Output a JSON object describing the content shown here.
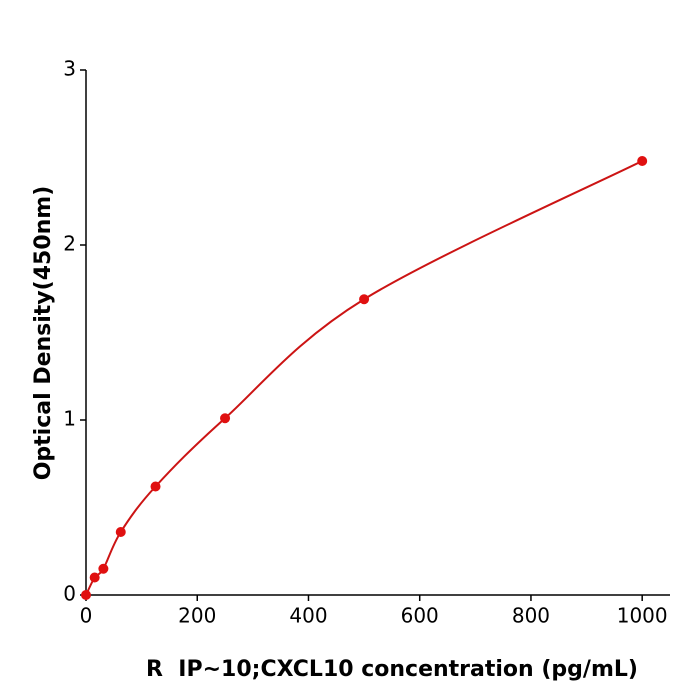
{
  "chart_data": {
    "type": "scatter-curve",
    "x_label": "R  IP~10;CXCL10 concentration (pg/mL)",
    "y_label": "Optical Density(450nm)",
    "x": [
      0,
      15.6,
      31.25,
      62.5,
      125,
      250,
      500,
      1000
    ],
    "values": [
      0.0,
      0.1,
      0.15,
      0.36,
      0.62,
      1.01,
      1.69,
      2.48
    ],
    "color": "#e01010",
    "line_color": "#cc1414",
    "xlim": [
      0,
      1050
    ],
    "ylim": [
      0,
      3
    ],
    "xticks": [
      0,
      200,
      400,
      600,
      800,
      1000
    ],
    "yticks": [
      0,
      1,
      2,
      3
    ]
  }
}
